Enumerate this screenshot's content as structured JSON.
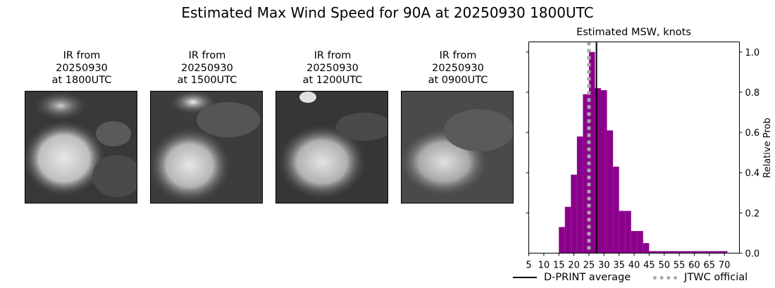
{
  "figure": {
    "suptitle": "Estimated Max Wind Speed for 90A at 20250930 1800UTC"
  },
  "ir_panels": [
    {
      "title": "IR from\n20250930\nat 1800UTC"
    },
    {
      "title": "IR from\n20250930\nat 1500UTC"
    },
    {
      "title": "IR from\n20250930\nat 1200UTC"
    },
    {
      "title": "IR from\n20250930\nat 0900UTC"
    }
  ],
  "chart_data": {
    "type": "bar",
    "title": "Estimated MSW, knots",
    "xlabel": "",
    "ylabel": "Relative Prob",
    "xlim": [
      5,
      75
    ],
    "ylim": [
      0,
      1.05
    ],
    "xticks": [
      5,
      10,
      15,
      20,
      25,
      30,
      35,
      40,
      45,
      50,
      55,
      60,
      65,
      70
    ],
    "yticks": [
      0.2,
      0.4,
      0.6,
      0.8,
      1.0
    ],
    "ytick_labels": [
      "0.2",
      "0.4",
      "0.6",
      "0.8",
      "1.0"
    ],
    "y_axis_side": "right",
    "bin_width": 2,
    "bins_start": [
      15,
      17,
      19,
      21,
      23,
      25,
      27,
      29,
      31,
      33,
      35,
      37,
      39,
      41,
      43,
      45,
      47,
      49,
      51,
      53,
      55,
      57,
      59,
      61,
      63,
      65,
      67,
      69
    ],
    "values": [
      0.13,
      0.23,
      0.39,
      0.58,
      0.79,
      1.0,
      0.82,
      0.81,
      0.61,
      0.43,
      0.21,
      0.21,
      0.11,
      0.11,
      0.05,
      0.01,
      0.01,
      0.01,
      0.01,
      0.01,
      0.01,
      0.01,
      0.01,
      0.01,
      0.01,
      0.01,
      0.01,
      0.01
    ],
    "bar_color": "#8b008b",
    "dprint_average": 27.5,
    "jtwc_official": 25,
    "legend": [
      {
        "label": "D-PRINT average",
        "style": "solid",
        "color": "#000000"
      },
      {
        "label": "JTWC official",
        "style": "dotted",
        "color": "#a9a9a9"
      }
    ],
    "legend_placement": "bottom"
  }
}
